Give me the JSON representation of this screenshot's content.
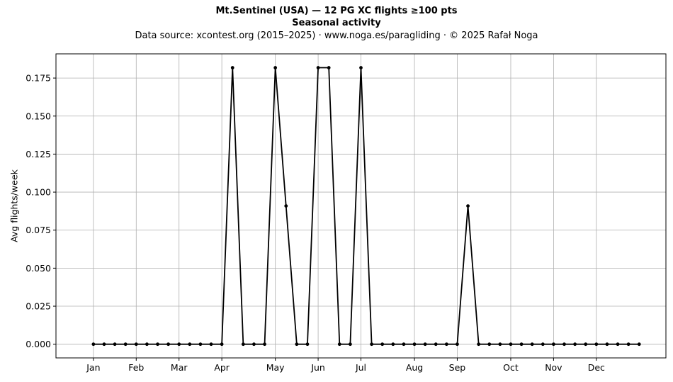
{
  "chart_data": {
    "type": "line",
    "title_lines": [
      "Mt.Sentinel (USA)  —  12 PG XC flights ≥100 pts",
      "Seasonal activity",
      "Data source: xcontest.org (2015–2025)  ·  www.noga.es/paragliding  ·  © 2025 Rafał Noga"
    ],
    "ylabel": "Avg flights/week",
    "xlabel": "",
    "grid": true,
    "xlim": [
      -2.5,
      54.5
    ],
    "ylim": [
      -0.009,
      0.1909
    ],
    "x_ticks": [
      {
        "label": "Jan",
        "week": 1
      },
      {
        "label": "Feb",
        "week": 5
      },
      {
        "label": "Mar",
        "week": 9
      },
      {
        "label": "Apr",
        "week": 13
      },
      {
        "label": "May",
        "week": 18
      },
      {
        "label": "Jun",
        "week": 22
      },
      {
        "label": "Jul",
        "week": 26
      },
      {
        "label": "Aug",
        "week": 31
      },
      {
        "label": "Sep",
        "week": 35
      },
      {
        "label": "Oct",
        "week": 40
      },
      {
        "label": "Nov",
        "week": 44
      },
      {
        "label": "Dec",
        "week": 48
      }
    ],
    "y_ticks": [
      {
        "value": 0.0,
        "label": "0.000"
      },
      {
        "value": 0.025,
        "label": "0.025"
      },
      {
        "value": 0.05,
        "label": "0.050"
      },
      {
        "value": 0.075,
        "label": "0.075"
      },
      {
        "value": 0.1,
        "label": "0.100"
      },
      {
        "value": 0.125,
        "label": "0.125"
      },
      {
        "value": 0.15,
        "label": "0.150"
      },
      {
        "value": 0.175,
        "label": "0.175"
      }
    ],
    "series": [
      {
        "color": "#000000",
        "x": [
          1,
          2,
          3,
          4,
          5,
          6,
          7,
          8,
          9,
          10,
          11,
          12,
          13,
          14,
          15,
          16,
          17,
          18,
          19,
          20,
          21,
          22,
          23,
          24,
          25,
          26,
          27,
          28,
          29,
          30,
          31,
          32,
          33,
          34,
          35,
          36,
          37,
          38,
          39,
          40,
          41,
          42,
          43,
          44,
          45,
          46,
          47,
          48,
          49,
          50,
          51,
          52
        ],
        "values": [
          0,
          0,
          0,
          0,
          0,
          0,
          0,
          0,
          0,
          0,
          0,
          0,
          0,
          0.1818,
          0,
          0,
          0,
          0.1818,
          0.0909,
          0,
          0,
          0.1818,
          0.1818,
          0,
          0,
          0.1818,
          0,
          0,
          0,
          0,
          0,
          0,
          0,
          0,
          0,
          0.0909,
          0,
          0,
          0,
          0,
          0,
          0,
          0,
          0,
          0,
          0,
          0,
          0,
          0,
          0,
          0,
          0
        ]
      }
    ]
  }
}
